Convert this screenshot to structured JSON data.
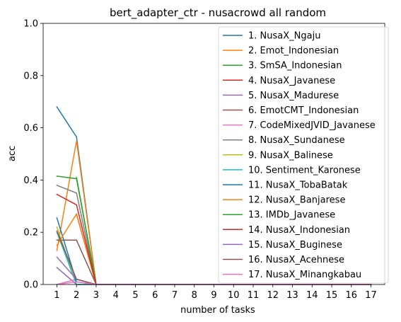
{
  "chart_data": {
    "type": "line",
    "title": "bert_adapter_ctr - nusacrowd all random",
    "xlabel": "number of tasks",
    "ylabel": "acc",
    "xlim": [
      0.3,
      17.7
    ],
    "ylim": [
      0,
      1.0
    ],
    "x_ticks": [
      1,
      2,
      3,
      4,
      5,
      6,
      7,
      8,
      9,
      10,
      11,
      12,
      13,
      14,
      15,
      16,
      17
    ],
    "y_ticks": [
      "0.0",
      "0.2",
      "0.4",
      "0.6",
      "0.8",
      "1.0"
    ],
    "legend_position": "upper-right",
    "series": [
      {
        "name": "1. NusaX_Ngaju",
        "color": "#1f77b4",
        "x": [
          1,
          2,
          3,
          4,
          5,
          6,
          7,
          8,
          9,
          10,
          11,
          12,
          13,
          14,
          15,
          16,
          17
        ],
        "values": [
          0.68,
          0.565,
          0,
          0,
          0,
          0,
          0,
          0,
          0,
          0,
          0,
          0,
          0,
          0,
          0,
          0,
          0
        ]
      },
      {
        "name": "2. Emot_Indonesian",
        "color": "#ff7f0e",
        "x": [
          1,
          2,
          3,
          4,
          5,
          6,
          7,
          8,
          9,
          10,
          11,
          12,
          13,
          14,
          15,
          16,
          17
        ],
        "values": [
          0.13,
          0.55,
          0,
          0,
          0,
          0,
          0,
          0,
          0,
          0,
          0,
          0,
          0,
          0,
          0,
          0,
          0
        ]
      },
      {
        "name": "3. SmSA_Indonesian",
        "color": "#2ca02c",
        "x": [
          2,
          3,
          4,
          5,
          6,
          7,
          8,
          9,
          10,
          11,
          12,
          13,
          14,
          15,
          16,
          17
        ],
        "values": [
          0.41,
          0,
          0,
          0,
          0,
          0,
          0,
          0,
          0,
          0,
          0,
          0,
          0,
          0,
          0,
          0
        ]
      },
      {
        "name": "4. NusaX_Javanese",
        "color": "#d62728",
        "x": [
          2,
          3,
          4,
          5,
          6,
          7,
          8,
          9,
          10,
          11,
          12,
          13,
          14,
          15,
          16,
          17
        ],
        "values": [
          0.27,
          0,
          0,
          0,
          0,
          0,
          0,
          0,
          0,
          0,
          0,
          0,
          0,
          0,
          0,
          0
        ]
      },
      {
        "name": "5. NusaX_Madurese",
        "color": "#9467bd",
        "x": [
          1,
          2,
          3,
          4,
          5,
          6,
          7,
          8,
          9,
          10,
          11,
          12,
          13,
          14,
          15,
          16,
          17
        ],
        "values": [
          0.065,
          0,
          0,
          0,
          0,
          0,
          0,
          0,
          0,
          0,
          0,
          0,
          0,
          0,
          0,
          0,
          0
        ]
      },
      {
        "name": "6. EmotCMT_Indonesian",
        "color": "#8c564b",
        "x": [
          1,
          2,
          3,
          4,
          5,
          6,
          7,
          8,
          9,
          10,
          11,
          12,
          13,
          14,
          15,
          16,
          17
        ],
        "values": [
          0.17,
          0.17,
          0,
          0,
          0,
          0,
          0,
          0,
          0,
          0,
          0,
          0,
          0,
          0,
          0,
          0,
          0
        ]
      },
      {
        "name": "7. CodeMixedJVID_Javanese",
        "color": "#e377c2",
        "x": [
          1,
          2,
          3,
          4,
          5,
          6,
          7,
          8,
          9,
          10,
          11,
          12,
          13,
          14,
          15,
          16,
          17
        ],
        "values": [
          0,
          0.02,
          0,
          0,
          0,
          0,
          0,
          0,
          0,
          0,
          0,
          0,
          0,
          0,
          0,
          0,
          0
        ]
      },
      {
        "name": "8. NusaX_Sundanese",
        "color": "#7f7f7f",
        "x": [
          1,
          2,
          3,
          4,
          5,
          6,
          7,
          8,
          9,
          10,
          11,
          12,
          13,
          14,
          15,
          16,
          17
        ],
        "values": [
          0.38,
          0.35,
          0,
          0,
          0,
          0,
          0,
          0,
          0,
          0,
          0,
          0,
          0,
          0,
          0,
          0,
          0
        ]
      },
      {
        "name": "9. NusaX_Balinese",
        "color": "#bcbd22",
        "x": [
          1,
          2,
          3,
          4,
          5,
          6,
          7,
          8,
          9,
          10,
          11,
          12,
          13,
          14,
          15,
          16,
          17
        ],
        "values": [
          0.22,
          0,
          0,
          0,
          0,
          0,
          0,
          0,
          0,
          0,
          0,
          0,
          0,
          0,
          0,
          0,
          0
        ]
      },
      {
        "name": "10. Sentiment_Karonese",
        "color": "#17becf",
        "x": [
          1,
          2,
          3,
          4,
          5,
          6,
          7,
          8,
          9,
          10,
          11,
          12,
          13,
          14,
          15,
          16,
          17
        ],
        "values": [
          0.2,
          0,
          0,
          0,
          0,
          0,
          0,
          0,
          0,
          0,
          0,
          0,
          0,
          0,
          0,
          0,
          0
        ]
      },
      {
        "name": "11. NusaX_TobaBatak",
        "color": "#1f77b4",
        "x": [
          1,
          2,
          3,
          4,
          5,
          6,
          7,
          8,
          9,
          10,
          11,
          12,
          13,
          14,
          15,
          16,
          17
        ],
        "values": [
          0.255,
          0.01,
          0,
          0,
          0,
          0,
          0,
          0,
          0,
          0,
          0,
          0,
          0,
          0,
          0,
          0,
          0
        ]
      },
      {
        "name": "12. NusaX_Banjarese",
        "color": "#ff7f0e",
        "x": [
          1,
          2,
          3,
          4,
          5,
          6,
          7,
          8,
          9,
          10,
          11,
          12,
          13,
          14,
          15,
          16,
          17
        ],
        "values": [
          0.15,
          0.27,
          0,
          0,
          0,
          0,
          0,
          0,
          0,
          0,
          0,
          0,
          0,
          0,
          0,
          0,
          0
        ]
      },
      {
        "name": "13. IMDb_Javanese",
        "color": "#2ca02c",
        "x": [
          1,
          2,
          3,
          4,
          5,
          6,
          7,
          8,
          9,
          10,
          11,
          12,
          13,
          14,
          15,
          16,
          17
        ],
        "values": [
          0.415,
          0.405,
          0,
          0,
          0,
          0,
          0,
          0,
          0,
          0,
          0,
          0,
          0,
          0,
          0,
          0,
          0
        ]
      },
      {
        "name": "14. NusaX_Indonesian",
        "color": "#d62728",
        "x": [
          1,
          2,
          3,
          4,
          5,
          6,
          7,
          8,
          9,
          10,
          11,
          12,
          13,
          14,
          15,
          16,
          17
        ],
        "values": [
          0.345,
          0.305,
          0,
          0,
          0,
          0,
          0,
          0,
          0,
          0,
          0,
          0,
          0,
          0,
          0,
          0,
          0
        ]
      },
      {
        "name": "15. NusaX_Buginese",
        "color": "#9467bd",
        "x": [
          1,
          2,
          3,
          4,
          5,
          6,
          7,
          8,
          9,
          10,
          11,
          12,
          13,
          14,
          15,
          16,
          17
        ],
        "values": [
          0.105,
          0.02,
          0,
          0,
          0,
          0,
          0,
          0,
          0,
          0,
          0,
          0,
          0,
          0,
          0,
          0,
          0
        ]
      },
      {
        "name": "16. NusaX_Acehnese",
        "color": "#8c564b",
        "x": [
          1,
          2,
          3,
          4,
          5,
          6,
          7,
          8,
          9,
          10,
          11,
          12,
          13,
          14,
          15,
          16,
          17
        ],
        "values": [
          0.205,
          0.02,
          0,
          0,
          0,
          0,
          0,
          0,
          0,
          0,
          0,
          0,
          0,
          0,
          0,
          0,
          0
        ]
      },
      {
        "name": "17. NusaX_Minangkabau",
        "color": "#e377c2",
        "x": [
          1,
          2,
          3,
          4,
          5,
          6,
          7,
          8,
          9,
          10,
          11,
          12,
          13,
          14,
          15,
          16,
          17
        ],
        "values": [
          0,
          0.01,
          0,
          0,
          0,
          0,
          0,
          0,
          0,
          0,
          0,
          0,
          0,
          0,
          0,
          0,
          0
        ]
      }
    ]
  }
}
